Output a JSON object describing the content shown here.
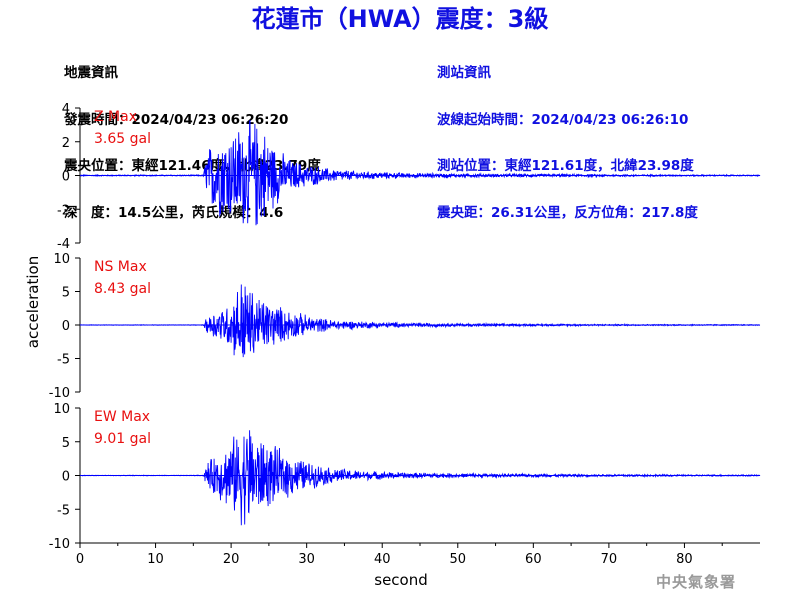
{
  "header": {
    "title": "花蓮市（HWA）震度：3級"
  },
  "event_info": {
    "heading": "地震資訊",
    "origin_time": "發震時間：2024/04/23 06:26:20",
    "epicenter": "震央位置：東經121.46度，北緯23.79度",
    "depth_magnitude": "深　度：14.5公里，芮氏規模：4.6"
  },
  "station_info": {
    "heading": "測站資訊",
    "wave_start": "波線起始時間：2024/04/23 06:26:10",
    "location": "測站位置：東經121.61度，北緯23.98度",
    "distance": "震央距：26.31公里，反方位角：217.8度"
  },
  "watermark": "中央氣象署",
  "colors": {
    "title": "#1010e0",
    "station_text": "#1010e0",
    "trace": "#0000ff",
    "max_label": "#e81010",
    "axis": "#000000"
  },
  "chart_data": {
    "type": "line",
    "xlabel": "second",
    "ylabel": "acceleration",
    "xlim": [
      0,
      90
    ],
    "xticks": [
      0,
      10,
      20,
      30,
      40,
      50,
      60,
      70,
      80
    ],
    "grid": false,
    "series": [
      {
        "name": "Z",
        "max_title": "Z Max",
        "max_value": "3.65 gal",
        "ylim": [
          -4,
          4
        ],
        "yticks": [
          4,
          2,
          0,
          -2,
          -4
        ],
        "envelope": [
          [
            0,
            0.04
          ],
          [
            16.3,
            0.04
          ],
          [
            16.8,
            1.6
          ],
          [
            18,
            2.6
          ],
          [
            20,
            3.0
          ],
          [
            22,
            3.5
          ],
          [
            23.5,
            3.65
          ],
          [
            25,
            2.6
          ],
          [
            26.5,
            1.6
          ],
          [
            28,
            1.0
          ],
          [
            30,
            0.75
          ],
          [
            33,
            0.45
          ],
          [
            37,
            0.28
          ],
          [
            42,
            0.18
          ],
          [
            50,
            0.12
          ],
          [
            60,
            0.1
          ],
          [
            70,
            0.07
          ],
          [
            78,
            0.05
          ],
          [
            90,
            0.04
          ]
        ]
      },
      {
        "name": "NS",
        "max_title": "NS Max",
        "max_value": "8.43 gal",
        "ylim": [
          -10,
          10
        ],
        "yticks": [
          10,
          5,
          0,
          -5,
          -10
        ],
        "envelope": [
          [
            0,
            0.05
          ],
          [
            16.3,
            0.05
          ],
          [
            16.8,
            1.5
          ],
          [
            18,
            2.5
          ],
          [
            19.5,
            3.3
          ],
          [
            20.5,
            5.2
          ],
          [
            21.5,
            8.43
          ],
          [
            22.5,
            6.2
          ],
          [
            23.5,
            5.0
          ],
          [
            25,
            4.0
          ],
          [
            26.5,
            3.0
          ],
          [
            28,
            2.4
          ],
          [
            30,
            1.6
          ],
          [
            33,
            0.9
          ],
          [
            37,
            0.6
          ],
          [
            42,
            0.4
          ],
          [
            50,
            0.25
          ],
          [
            60,
            0.18
          ],
          [
            70,
            0.13
          ],
          [
            80,
            0.1
          ],
          [
            90,
            0.08
          ]
        ]
      },
      {
        "name": "EW",
        "max_title": "EW Max",
        "max_value": "9.01 gal",
        "ylim": [
          -10,
          10
        ],
        "yticks": [
          10,
          5,
          0,
          -5,
          -10
        ],
        "envelope": [
          [
            0,
            0.05
          ],
          [
            16.3,
            0.05
          ],
          [
            16.8,
            2.0
          ],
          [
            18,
            3.5
          ],
          [
            19.5,
            5.0
          ],
          [
            20.5,
            6.5
          ],
          [
            21.5,
            8.0
          ],
          [
            22.5,
            9.01
          ],
          [
            23.5,
            6.5
          ],
          [
            25,
            5.2
          ],
          [
            26.5,
            4.2
          ],
          [
            28,
            3.3
          ],
          [
            30,
            2.3
          ],
          [
            33,
            1.3
          ],
          [
            37,
            0.8
          ],
          [
            42,
            0.5
          ],
          [
            50,
            0.35
          ],
          [
            60,
            0.25
          ],
          [
            70,
            0.18
          ],
          [
            80,
            0.14
          ],
          [
            90,
            0.1
          ]
        ]
      }
    ]
  }
}
